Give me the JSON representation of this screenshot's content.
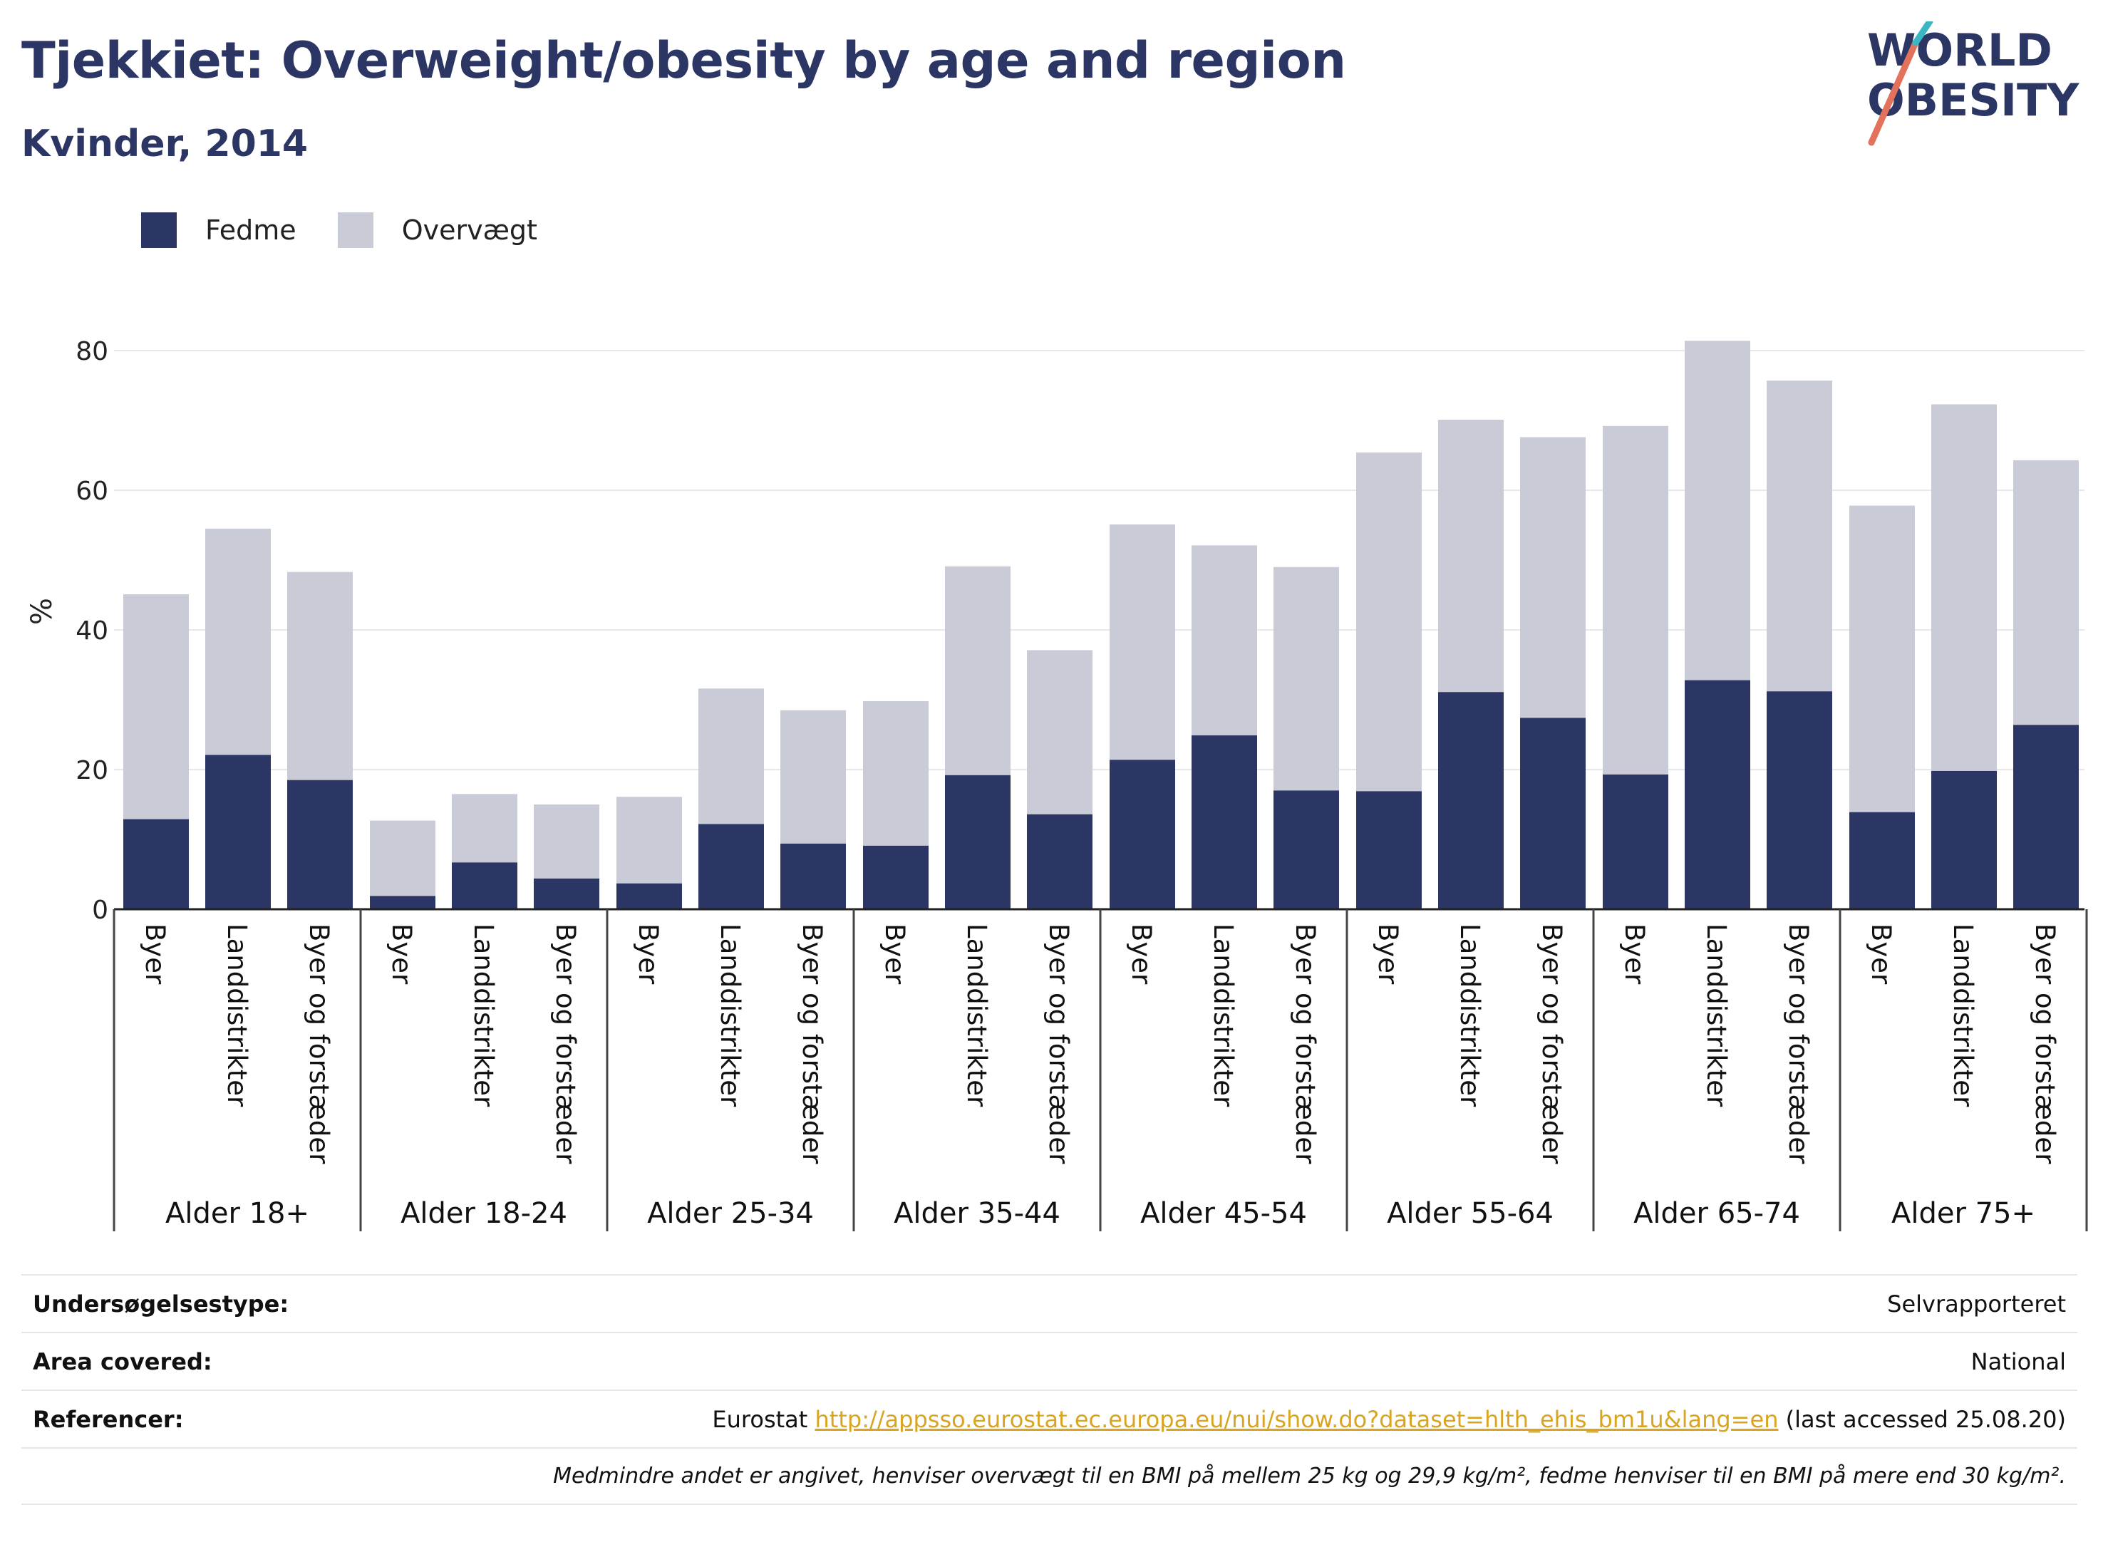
{
  "title": "Tjekkiet: Overweight/obesity by age and region",
  "subtitle": "Kvinder, 2014",
  "logo": {
    "line1": "WORLD",
    "line2": "OBESITY"
  },
  "legend": [
    {
      "label": "Fedme",
      "color": "#2b3664"
    },
    {
      "label": "Overvægt",
      "color": "#c9cbd6"
    }
  ],
  "chart_data": {
    "type": "bar",
    "stacked": true,
    "ylabel": "%",
    "ylim": [
      0,
      85
    ],
    "yticks": [
      0,
      20,
      40,
      60,
      80
    ],
    "grid": true,
    "legend_position": "top-left",
    "group_labels": [
      "Alder 18+",
      "Alder 18-24",
      "Alder 25-34",
      "Alder 35-44",
      "Alder 45-54",
      "Alder 55-64",
      "Alder 65-74",
      "Alder 75+"
    ],
    "sub_labels": [
      "Byer",
      "Landdistrikter",
      "Byer og forstæder"
    ],
    "series": [
      {
        "name": "Fedme",
        "color": "#2b3664",
        "values": [
          12.9,
          22.1,
          18.5,
          1.9,
          6.7,
          4.4,
          3.7,
          12.2,
          9.4,
          9.1,
          19.2,
          13.6,
          21.4,
          24.9,
          17.0,
          16.9,
          31.1,
          27.4,
          19.3,
          32.8,
          31.2,
          13.9,
          19.8,
          26.4
        ]
      },
      {
        "name": "Overvægt",
        "color": "#c9cbd6",
        "values": [
          32.2,
          32.4,
          29.8,
          10.8,
          9.8,
          10.6,
          12.4,
          19.4,
          19.1,
          20.7,
          29.9,
          23.5,
          33.7,
          27.2,
          32.0,
          48.5,
          39.0,
          40.2,
          49.9,
          48.6,
          44.5,
          43.9,
          52.5,
          37.9
        ]
      }
    ]
  },
  "info": {
    "survey_type_label": "Undersøgelsestype:",
    "survey_type_value": "Selvrapporteret",
    "area_label": "Area covered:",
    "area_value": "National",
    "refs_label": "Referencer:",
    "refs_prefix": "Eurostat",
    "refs_link": "http://appsso.eurostat.ec.europa.eu/nui/show.do?dataset=hlth_ehis_bm1u&lang=en",
    "refs_suffix": "(last accessed 25.08.20)",
    "note": "Medmindre andet er angivet, henviser overvægt til en BMI på mellem 25 kg og 29,9 kg/m², fedme henviser til en BMI på mere end 30 kg/m²."
  }
}
